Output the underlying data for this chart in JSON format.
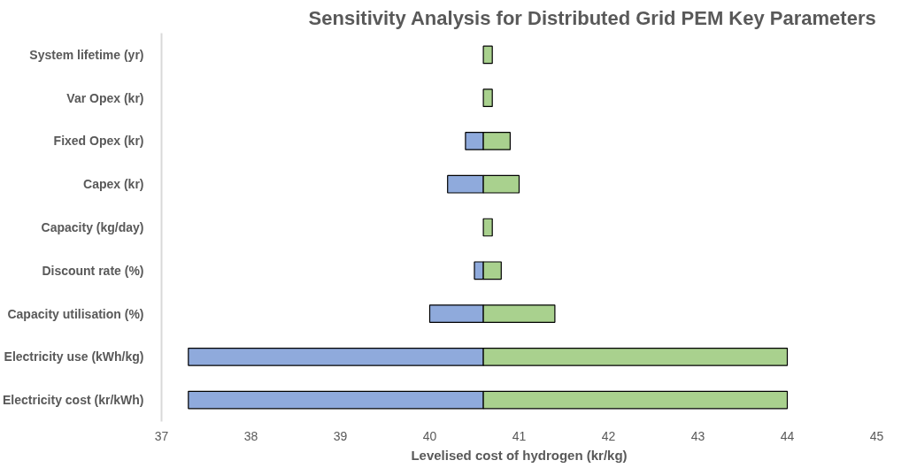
{
  "chart_data": {
    "type": "bar",
    "orientation": "horizontal",
    "title": "Sensitivity Analysis for Distributed Grid PEM Key Parameters",
    "xlabel": "Levelised cost of hydrogen (kr/kg)",
    "categories": [
      "System lifetime (yr)",
      "Var Opex (kr)",
      "Fixed Opex (kr)",
      "Capex (kr)",
      "Capacity (kg/day)",
      "Discount rate (%)",
      "Capacity utilisation (%)",
      "Electricity use (kWh/kg)",
      "Electricity cost (kr/kWh)"
    ],
    "series": [
      {
        "color": "#8faadc",
        "base": [
          null,
          null,
          40.4,
          40.2,
          null,
          40.5,
          40.0,
          37.3,
          37.3
        ],
        "values": [
          null,
          null,
          0.2,
          0.4,
          null,
          0.1,
          0.6,
          3.3,
          3.3
        ]
      },
      {
        "color": "#a9d18e",
        "base": [
          40.6,
          40.6,
          40.6,
          40.6,
          40.6,
          40.6,
          40.6,
          40.6,
          40.6
        ],
        "values": [
          0.1,
          0.1,
          0.3,
          0.4,
          0.1,
          0.2,
          0.8,
          3.4,
          3.4
        ]
      }
    ],
    "xlim": [
      37,
      45
    ],
    "xticks": [
      37,
      38,
      39,
      40,
      41,
      42,
      43,
      44,
      45
    ],
    "grid": false
  }
}
